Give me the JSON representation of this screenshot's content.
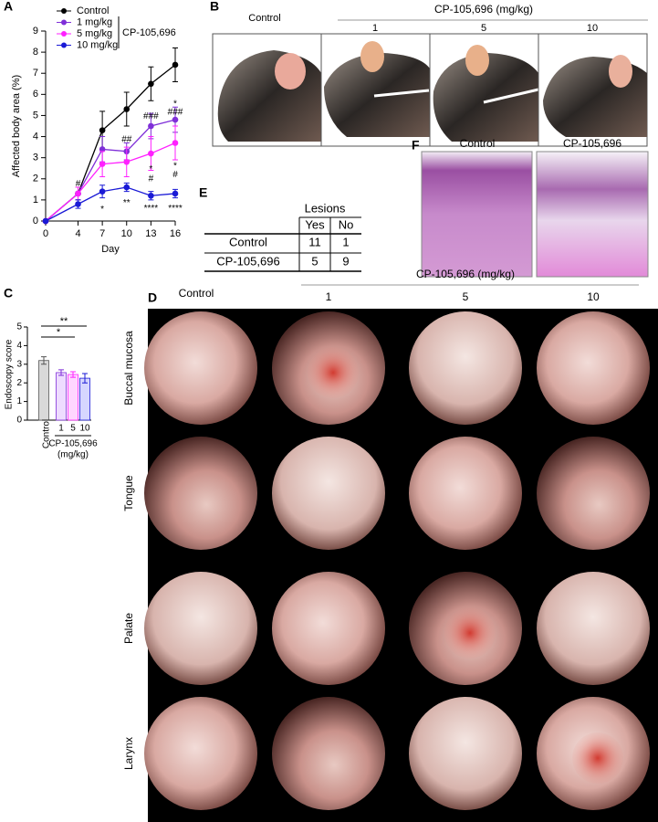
{
  "chart_data": [
    {
      "type": "line",
      "panel": "A",
      "y_label": "Affected body area (%)",
      "x_label": "Day",
      "x": [
        0,
        4,
        7,
        10,
        13,
        16
      ],
      "xlim": [
        0,
        16
      ],
      "xticks": [
        0,
        4,
        7,
        10,
        13,
        16
      ],
      "ylim": [
        0,
        9
      ],
      "yticks": [
        0,
        1,
        2,
        3,
        4,
        5,
        6,
        7,
        8,
        9
      ],
      "legend_group_label": "CP-105,696",
      "series": [
        {
          "name": "Control",
          "color": "#000000",
          "values": [
            0,
            1.3,
            4.3,
            5.3,
            6.5,
            7.4
          ],
          "errors": [
            null,
            0.3,
            0.9,
            0.8,
            0.8,
            0.8
          ]
        },
        {
          "name": "1 mg/kg",
          "color": "#7f2fd8",
          "values": [
            0,
            1.3,
            3.4,
            3.3,
            4.5,
            4.8
          ],
          "errors": [
            null,
            0.3,
            0.6,
            0.4,
            0.6,
            0.6
          ]
        },
        {
          "name": "5 mg/kg",
          "color": "#ff20ff",
          "values": [
            0,
            1.3,
            2.7,
            2.8,
            3.2,
            3.7
          ],
          "errors": [
            null,
            0.3,
            0.6,
            0.7,
            0.8,
            0.8
          ]
        },
        {
          "name": "10 mg/kg",
          "color": "#1a1ad6",
          "values": [
            0,
            0.8,
            1.4,
            1.6,
            1.2,
            1.3
          ],
          "errors": [
            null,
            0.2,
            0.3,
            0.2,
            0.2,
            0.2
          ]
        }
      ],
      "annotations": [
        "#",
        "*",
        "##",
        "**",
        "###",
        "*",
        "#",
        "****",
        "*",
        "###",
        "*",
        "#",
        "****"
      ]
    },
    {
      "type": "bar",
      "panel": "C",
      "y_label": "Endoscopy score",
      "categories": [
        "Control",
        "1",
        "5",
        "10"
      ],
      "values": [
        3.2,
        2.55,
        2.45,
        2.25
      ],
      "errors": [
        0.2,
        0.15,
        0.15,
        0.25
      ],
      "colors": [
        "#d9d9d9",
        "#eedcff",
        "#ffd6ff",
        "#d6d6ff"
      ],
      "edge_colors": [
        "#555555",
        "#7f2fd8",
        "#ff20ff",
        "#1a1ad6"
      ],
      "ylim": [
        0,
        5
      ],
      "yticks": [
        0,
        1,
        2,
        3,
        4,
        5
      ],
      "x_group_label": "CP-105,696",
      "x_group_unit": "(mg/kg)",
      "annotations": [
        "**",
        "*"
      ]
    }
  ],
  "panel_b": {
    "label": "B",
    "control": "Control",
    "group": "CP-105,696 (mg/kg)",
    "doses": [
      "1",
      "5",
      "10"
    ]
  },
  "panel_d": {
    "label": "D",
    "control": "Control",
    "group": "CP-105,696 (mg/kg)",
    "doses": [
      "1",
      "5",
      "10"
    ],
    "rows": [
      "Buccal mucosa",
      "Tongue",
      "Palate",
      "Larynx"
    ]
  },
  "panel_e": {
    "label": "E",
    "column_group": "Lesions",
    "columns": [
      "Yes",
      "No"
    ],
    "rows": [
      [
        "Control",
        11,
        1
      ],
      [
        "CP-105,696",
        5,
        9
      ]
    ]
  },
  "panel_f": {
    "label": "F",
    "images": [
      "Control",
      "CP-105,696"
    ]
  }
}
